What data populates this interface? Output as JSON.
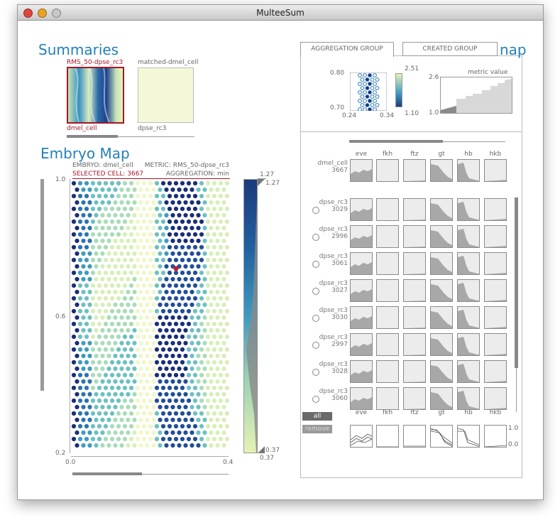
{
  "window": {
    "title": "MulteeSum"
  },
  "summaries": {
    "title": "Summaries",
    "thumb1": {
      "top_label": "RMS_50-dpse_rc3",
      "bottom_label": "dmel_cell"
    },
    "thumb2": {
      "top_label": "matched-dmel_cell",
      "bottom_label": "dpse_rc3"
    }
  },
  "embryo_map": {
    "title": "Embryo Map",
    "info_embryo": "EMBRYO: dmel_cell",
    "info_metric": "METRIC: RMS_50-dpse_rc3",
    "info_selected": "SELECTED CELL: 3667",
    "info_aggregation": "AGGREGATION: min",
    "y_ticks": [
      "1.0",
      "0.6",
      "0.2"
    ],
    "x_ticks": [
      "0.0",
      "0.4"
    ],
    "colorbar_top": "1.27",
    "colorbar_top_marker": "1.27",
    "colorbar_bottom_marker": "0.37",
    "colorbar_bottom": "0.37"
  },
  "right_panel": {
    "title_fragment": "nap",
    "tabs": [
      "AGGREGATION GROUP",
      "CREATED GROUP"
    ],
    "mini_map": {
      "y_top": "0.80",
      "y_bottom": "0.70",
      "x_left": "0.24",
      "x_right": "0.34",
      "cb_top": "2.51",
      "cb_bottom": "1.10"
    },
    "metric": {
      "label": "metric value",
      "y_top": "2.6",
      "y_bottom": "1.0"
    },
    "genes": [
      "eve",
      "fkh",
      "ftz",
      "gt",
      "hb",
      "hkb"
    ],
    "reference": {
      "name": "dmel_cell",
      "id": "3667"
    },
    "rows": [
      {
        "name": "dpse_rc3",
        "id": "3029"
      },
      {
        "name": "dpse_rc3",
        "id": "2996"
      },
      {
        "name": "dpse_rc3",
        "id": "3061"
      },
      {
        "name": "dpse_rc3",
        "id": "3027"
      },
      {
        "name": "dpse_rc3",
        "id": "3030"
      },
      {
        "name": "dpse_rc3",
        "id": "2997"
      },
      {
        "name": "dpse_rc3",
        "id": "3028"
      },
      {
        "name": "dpse_rc3",
        "id": "3060"
      }
    ],
    "buttons": {
      "all": "all",
      "remove": "remove"
    },
    "overlay_axis": {
      "top": "1.0",
      "bottom": "0.0"
    }
  },
  "colors": {
    "accent": "#2480b8",
    "selected": "#a01828",
    "panel_gray": "#9a9a9a"
  }
}
